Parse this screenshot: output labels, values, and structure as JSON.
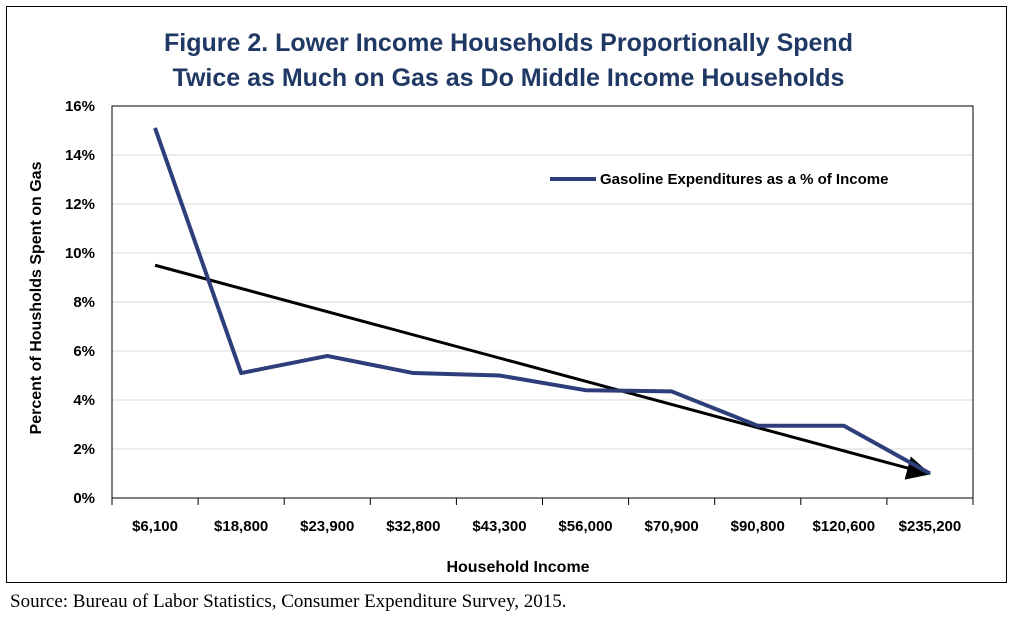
{
  "colors": {
    "series": "#2E3E7A",
    "trend": "#000000",
    "title": "#1F3864",
    "grid": "#D9D9D9"
  },
  "chart_data": {
    "type": "line",
    "title_lines": [
      "Figure 2. Lower Income Households Proportionally Spend",
      "Twice as Much on Gas as Do Middle Income Households"
    ],
    "xlabel": "Household Income",
    "ylabel": "Percent of Housholds Spent on Gas",
    "categories": [
      "$6,100",
      "$18,800",
      "$23,900",
      "$32,800",
      "$43,300",
      "$56,000",
      "$70,900",
      "$90,800",
      "$120,600",
      "$235,200"
    ],
    "series": [
      {
        "name": "Gasoline Expenditures as a % of Income",
        "values": [
          15.1,
          5.1,
          5.8,
          5.1,
          5.0,
          4.4,
          4.35,
          2.95,
          2.95,
          1.0
        ]
      }
    ],
    "trendline": {
      "start": 9.5,
      "end": 1.0,
      "arrow": true
    },
    "ylim": [
      0,
      16
    ],
    "yticks": [
      "0%",
      "2%",
      "4%",
      "6%",
      "8%",
      "10%",
      "12%",
      "14%",
      "16%"
    ],
    "grid": true,
    "legend_position": "top-right"
  },
  "source": "Source: Bureau of Labor Statistics, Consumer Expenditure Survey, 2015."
}
